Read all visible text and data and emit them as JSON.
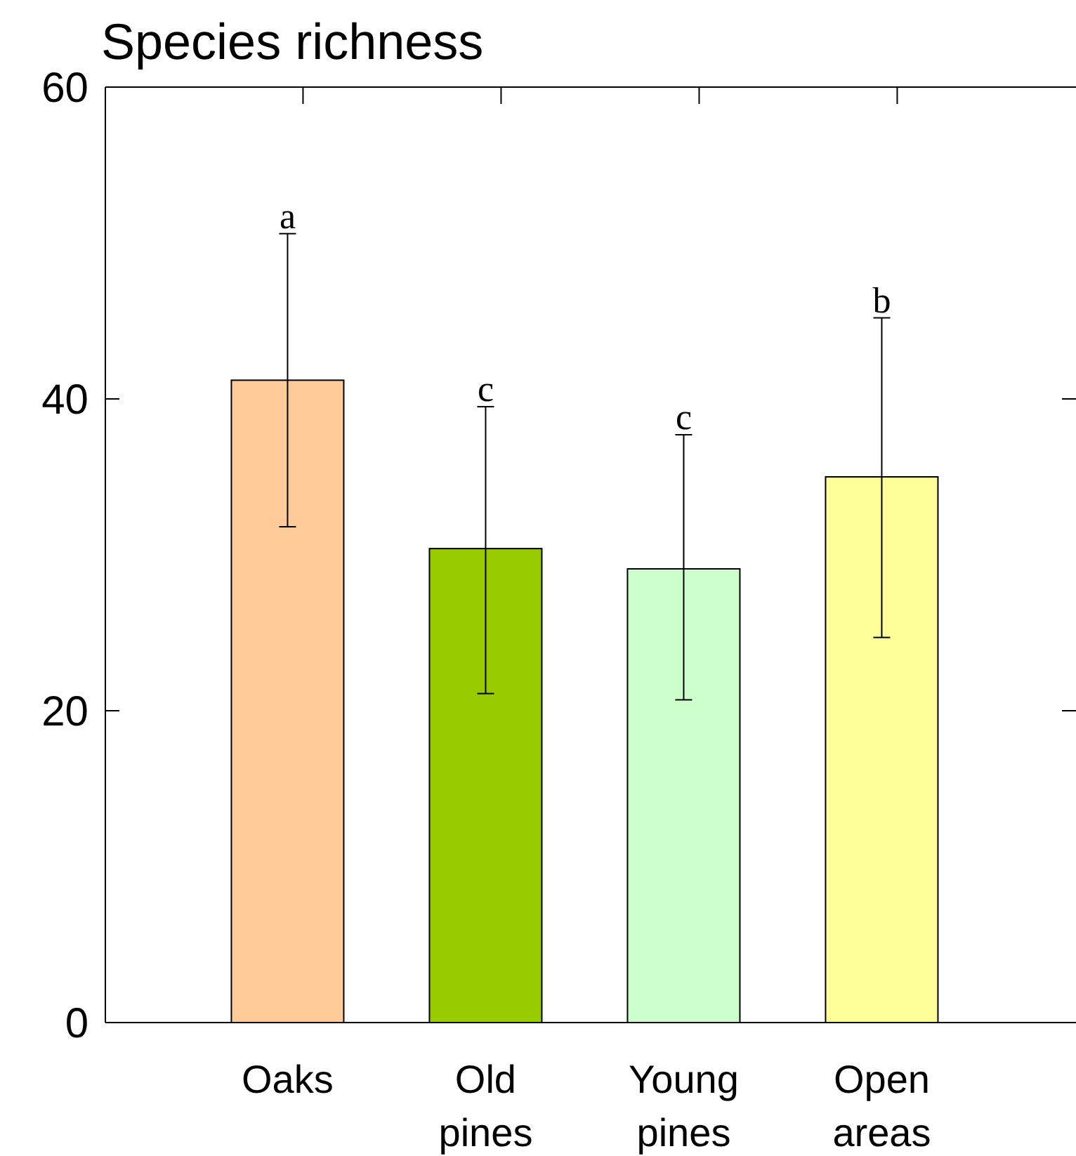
{
  "chart_data": {
    "type": "bar",
    "title": "Species richness",
    "categories": [
      "Oaks",
      "Old pines",
      "Young pines",
      "Open areas"
    ],
    "values": [
      41.2,
      30.4,
      29.1,
      35.0
    ],
    "colors": [
      "#ffcc99",
      "#99cc00",
      "#ccffcc",
      "#ffff99"
    ],
    "errors": [
      [
        31.8,
        50.6
      ],
      [
        21.1,
        39.5
      ],
      [
        20.7,
        37.7
      ],
      [
        24.7,
        45.2
      ]
    ],
    "ylim": [
      0,
      60
    ],
    "yticks": [
      0,
      20,
      40,
      60
    ],
    "grid": false,
    "annotations": [
      {
        "text": "a",
        "x": "Oaks",
        "y": 50.6
      },
      {
        "text": "c",
        "x": "Old pines",
        "y": 39.5
      },
      {
        "text": "c",
        "x": "Young pines",
        "y": 37.7
      },
      {
        "text": "b",
        "x": "Open areas",
        "y": 45.2
      }
    ]
  }
}
